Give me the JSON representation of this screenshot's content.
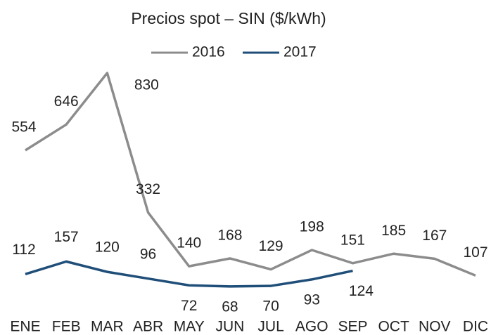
{
  "chart_data": {
    "type": "line",
    "title": "Precios spot – SIN ($/kWh)",
    "categories": [
      "ENE",
      "FEB",
      "MAR",
      "ABR",
      "MAY",
      "JUN",
      "JUL",
      "AGO",
      "SEP",
      "OCT",
      "NOV",
      "DIC"
    ],
    "series": [
      {
        "name": "2016",
        "color": "#8c8c8c",
        "values": [
          554,
          646,
          830,
          332,
          140,
          168,
          129,
          198,
          151,
          185,
          167,
          107
        ]
      },
      {
        "name": "2017",
        "color": "#1f4e79",
        "values": [
          112,
          157,
          120,
          96,
          72,
          68,
          70,
          93,
          124,
          null,
          null,
          null
        ]
      }
    ],
    "ylim": [
      0,
      900
    ],
    "legend": "top"
  }
}
